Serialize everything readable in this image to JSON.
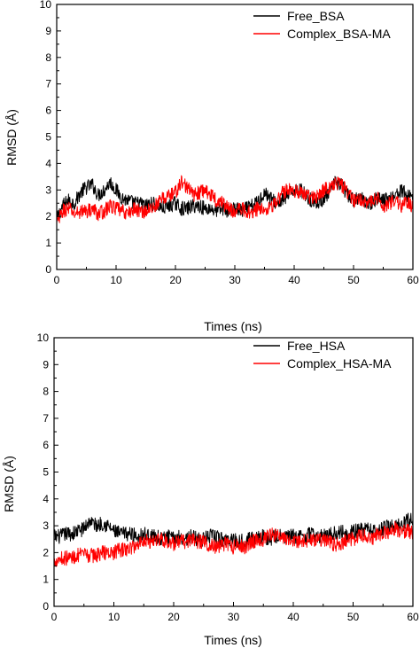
{
  "chart_data": [
    {
      "type": "line",
      "xlabel": "Times (ns)",
      "ylabel": "RMSD (Å)",
      "xlim": [
        0,
        60
      ],
      "ylim": [
        0,
        10
      ],
      "x_ticks": [
        "0",
        "10",
        "20",
        "30",
        "40",
        "50",
        "60"
      ],
      "y_ticks": [
        "0",
        "1",
        "2",
        "3",
        "4",
        "5",
        "6",
        "7",
        "8",
        "9",
        "10"
      ],
      "grid": false,
      "legend_position": "top-right",
      "series": [
        {
          "name": "Free_BSA",
          "color": "#000000",
          "x": [
            0,
            1,
            2,
            3,
            4,
            5,
            6,
            7,
            8,
            9,
            10,
            11,
            12,
            13,
            14,
            15,
            16,
            17,
            18,
            19,
            20,
            21,
            22,
            23,
            24,
            25,
            26,
            27,
            28,
            29,
            30,
            31,
            32,
            33,
            34,
            35,
            36,
            37,
            38,
            39,
            40,
            41,
            42,
            43,
            44,
            45,
            46,
            47,
            48,
            49,
            50,
            51,
            52,
            53,
            54,
            55,
            56,
            57,
            58,
            59,
            60
          ],
          "values": [
            1.9,
            2.4,
            2.6,
            2.5,
            2.9,
            3.1,
            3.2,
            2.8,
            3.0,
            3.3,
            3.0,
            2.7,
            2.6,
            2.5,
            2.5,
            2.4,
            2.5,
            2.4,
            2.3,
            2.4,
            2.5,
            2.3,
            2.3,
            2.4,
            2.4,
            2.3,
            2.3,
            2.2,
            2.3,
            2.2,
            2.3,
            2.2,
            2.3,
            2.4,
            2.6,
            2.9,
            2.7,
            2.5,
            2.6,
            2.8,
            3.0,
            3.0,
            2.8,
            2.6,
            2.5,
            2.7,
            2.9,
            3.3,
            3.2,
            2.8,
            2.6,
            2.7,
            2.6,
            2.5,
            2.7,
            2.6,
            2.7,
            2.8,
            3.0,
            2.8,
            2.8
          ]
        },
        {
          "name": "Complex_BSA-MA",
          "color": "#ff0000",
          "x": [
            0,
            1,
            2,
            3,
            4,
            5,
            6,
            7,
            8,
            9,
            10,
            11,
            12,
            13,
            14,
            15,
            16,
            17,
            18,
            19,
            20,
            21,
            22,
            23,
            24,
            25,
            26,
            27,
            28,
            29,
            30,
            31,
            32,
            33,
            34,
            35,
            36,
            37,
            38,
            39,
            40,
            41,
            42,
            43,
            44,
            45,
            46,
            47,
            48,
            49,
            50,
            51,
            52,
            53,
            54,
            55,
            56,
            57,
            58,
            59,
            60
          ],
          "values": [
            1.7,
            2.2,
            2.3,
            2.1,
            2.2,
            2.2,
            2.3,
            2.1,
            2.2,
            2.4,
            2.3,
            2.2,
            2.1,
            2.3,
            2.2,
            2.2,
            2.3,
            2.5,
            2.7,
            2.8,
            2.9,
            3.3,
            3.1,
            2.8,
            2.9,
            3.0,
            2.8,
            2.6,
            2.5,
            2.3,
            2.2,
            2.3,
            2.2,
            2.2,
            2.3,
            2.3,
            2.4,
            2.5,
            2.9,
            3.0,
            3.0,
            2.9,
            2.8,
            2.7,
            2.8,
            3.0,
            3.1,
            3.3,
            3.2,
            2.9,
            2.6,
            2.7,
            2.6,
            2.5,
            2.7,
            2.4,
            2.5,
            2.6,
            2.4,
            2.5,
            2.4
          ]
        }
      ]
    },
    {
      "type": "line",
      "xlabel": "Times (ns)",
      "ylabel": "RMSD (Å)",
      "xlim": [
        0,
        60
      ],
      "ylim": [
        0,
        10
      ],
      "x_ticks": [
        "0",
        "10",
        "20",
        "30",
        "40",
        "50",
        "60"
      ],
      "y_ticks": [
        "0",
        "1",
        "2",
        "3",
        "4",
        "5",
        "6",
        "7",
        "8",
        "9",
        "10"
      ],
      "grid": false,
      "legend_position": "top-right",
      "series": [
        {
          "name": "Free_HSA",
          "color": "#000000",
          "x": [
            0,
            1,
            2,
            3,
            4,
            5,
            6,
            7,
            8,
            9,
            10,
            11,
            12,
            13,
            14,
            15,
            16,
            17,
            18,
            19,
            20,
            21,
            22,
            23,
            24,
            25,
            26,
            27,
            28,
            29,
            30,
            31,
            32,
            33,
            34,
            35,
            36,
            37,
            38,
            39,
            40,
            41,
            42,
            43,
            44,
            45,
            46,
            47,
            48,
            49,
            50,
            51,
            52,
            53,
            54,
            55,
            56,
            57,
            58,
            59,
            60
          ],
          "values": [
            2.6,
            2.6,
            2.7,
            2.7,
            2.8,
            2.9,
            3.2,
            3.0,
            3.1,
            3.0,
            2.8,
            2.7,
            2.7,
            2.7,
            2.6,
            2.7,
            2.6,
            2.6,
            2.5,
            2.6,
            2.5,
            2.6,
            2.5,
            2.6,
            2.5,
            2.5,
            2.6,
            2.6,
            2.5,
            2.5,
            2.5,
            2.4,
            2.5,
            2.5,
            2.6,
            2.6,
            2.5,
            2.6,
            2.6,
            2.6,
            2.6,
            2.6,
            2.6,
            2.7,
            2.6,
            2.6,
            2.7,
            2.7,
            2.8,
            2.7,
            2.8,
            2.8,
            2.9,
            2.8,
            2.8,
            2.9,
            3.0,
            3.0,
            3.0,
            3.2,
            3.3
          ]
        },
        {
          "name": "Complex_HSA-MA",
          "color": "#ff0000",
          "x": [
            0,
            1,
            2,
            3,
            4,
            5,
            6,
            7,
            8,
            9,
            10,
            11,
            12,
            13,
            14,
            15,
            16,
            17,
            18,
            19,
            20,
            21,
            22,
            23,
            24,
            25,
            26,
            27,
            28,
            29,
            30,
            31,
            32,
            33,
            34,
            35,
            36,
            37,
            38,
            39,
            40,
            41,
            42,
            43,
            44,
            45,
            46,
            47,
            48,
            49,
            50,
            51,
            52,
            53,
            54,
            55,
            56,
            57,
            58,
            59,
            60
          ],
          "values": [
            1.7,
            1.8,
            1.8,
            1.8,
            1.9,
            1.9,
            1.9,
            1.9,
            2.0,
            2.0,
            2.0,
            2.1,
            2.1,
            2.2,
            2.3,
            2.5,
            2.4,
            2.5,
            2.5,
            2.4,
            2.3,
            2.4,
            2.4,
            2.5,
            2.4,
            2.4,
            2.3,
            2.2,
            2.3,
            2.3,
            2.2,
            2.3,
            2.2,
            2.4,
            2.5,
            2.5,
            2.6,
            2.7,
            2.5,
            2.5,
            2.5,
            2.4,
            2.5,
            2.4,
            2.5,
            2.5,
            2.4,
            2.3,
            2.3,
            2.5,
            2.5,
            2.6,
            2.6,
            2.5,
            2.7,
            2.7,
            2.8,
            2.9,
            2.8,
            2.8,
            2.7
          ]
        }
      ]
    }
  ]
}
